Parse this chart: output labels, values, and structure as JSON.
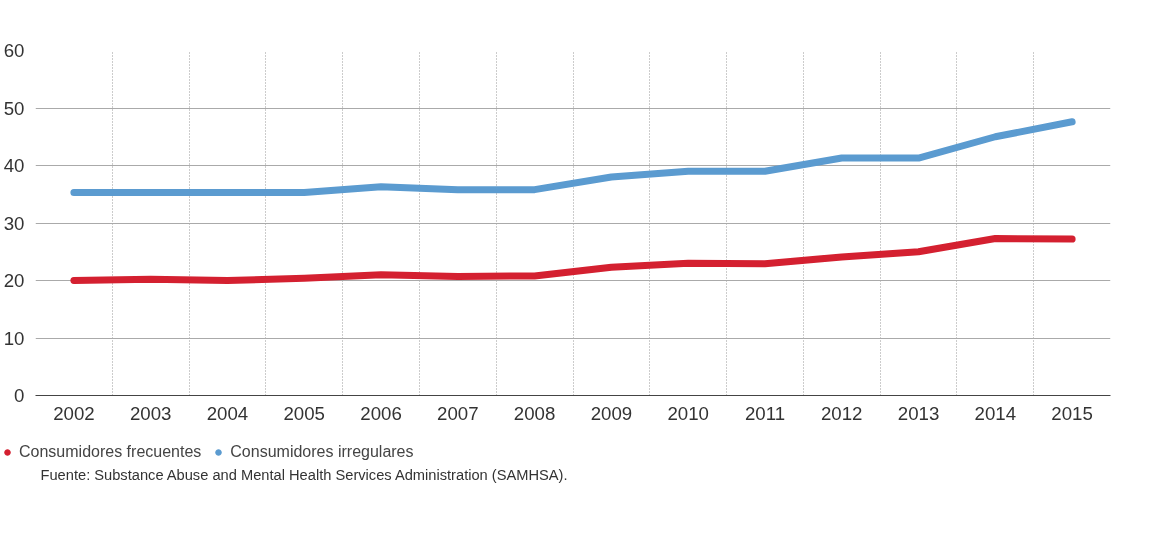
{
  "chart_data": {
    "type": "line",
    "categories": [
      "2002",
      "2003",
      "2004",
      "2005",
      "2006",
      "2007",
      "2008",
      "2009",
      "2010",
      "2011",
      "2012",
      "2013",
      "2014",
      "2015"
    ],
    "series": [
      {
        "name": "Consumidores frecuentes",
        "color": "#d42030",
        "values": [
          20.0,
          20.2,
          20.0,
          20.4,
          21.0,
          20.7,
          20.8,
          22.3,
          23.0,
          22.9,
          24.1,
          25.0,
          27.3,
          27.2
        ]
      },
      {
        "name": "Consumidores irregulares",
        "color": "#5b9bd0",
        "values": [
          35.3,
          35.3,
          35.3,
          35.3,
          36.3,
          35.8,
          35.8,
          38.0,
          39.0,
          39.0,
          41.3,
          41.3,
          45.0,
          47.6
        ]
      }
    ],
    "ylim": [
      0,
      60
    ],
    "yticks": [
      0,
      10,
      20,
      30,
      40,
      50,
      60
    ],
    "grid": true,
    "legend": "bottom",
    "marker": "none",
    "line_style": "solid",
    "annotations": [
      "Fuente: Substance Abuse and Mental Health Services Administration (SAMHSA)."
    ]
  }
}
